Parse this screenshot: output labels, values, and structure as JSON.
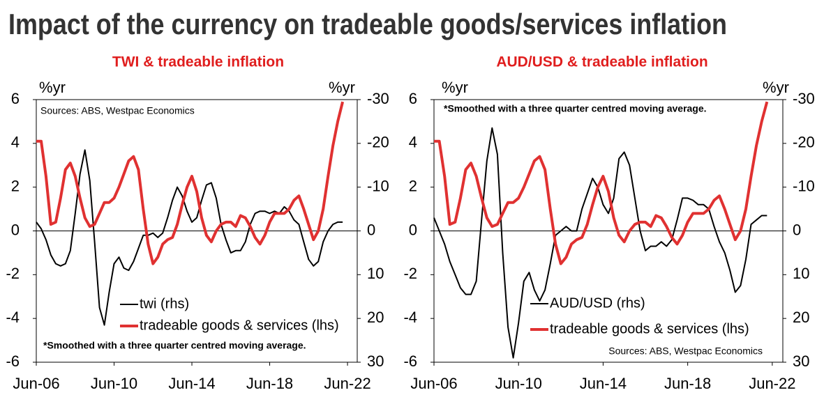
{
  "title": "Impact of the currency on tradeable goods/services inflation",
  "chart_data": [
    {
      "type": "line",
      "title": "TWI & tradeable inflation",
      "y_label": "%yr",
      "y2_label": "%yr",
      "sources": "Sources: ABS, Westpac Economics",
      "note": "*Smoothed with a three quarter centred moving average.",
      "legend": "lower center",
      "x": [
        "2006-06",
        "2006-09",
        "2006-12",
        "2007-03",
        "2007-06",
        "2007-09",
        "2007-12",
        "2008-03",
        "2008-06",
        "2008-09",
        "2008-12",
        "2009-03",
        "2009-06",
        "2009-09",
        "2009-12",
        "2010-03",
        "2010-06",
        "2010-09",
        "2010-12",
        "2011-03",
        "2011-06",
        "2011-09",
        "2011-12",
        "2012-03",
        "2012-06",
        "2012-09",
        "2012-12",
        "2013-03",
        "2013-06",
        "2013-09",
        "2013-12",
        "2014-03",
        "2014-06",
        "2014-09",
        "2014-12",
        "2015-03",
        "2015-06",
        "2015-09",
        "2015-12",
        "2016-03",
        "2016-06",
        "2016-09",
        "2016-12",
        "2017-03",
        "2017-06",
        "2017-09",
        "2017-12",
        "2018-03",
        "2018-06",
        "2018-09",
        "2018-12",
        "2019-03",
        "2019-06",
        "2019-09",
        "2019-12",
        "2020-03",
        "2020-06",
        "2020-09",
        "2020-12",
        "2021-03",
        "2021-06",
        "2021-09",
        "2021-12",
        "2022-03"
      ],
      "xlim": [
        "2006-06",
        "2022-12"
      ],
      "xticks": [
        {
          "value": "2006-06",
          "label": "Jun-06"
        },
        {
          "value": "2010-06",
          "label": "Jun-10"
        },
        {
          "value": "2014-06",
          "label": "Jun-14"
        },
        {
          "value": "2018-06",
          "label": "Jun-18"
        },
        {
          "value": "2022-06",
          "label": "Jun-22"
        }
      ],
      "ylim": [
        -6,
        6
      ],
      "yticks": [
        -6,
        -4,
        -2,
        0,
        2,
        4,
        6
      ],
      "y2lim": [
        30,
        -30
      ],
      "y2ticks": [
        -30,
        -20,
        -10,
        0,
        10,
        20,
        30
      ],
      "series": [
        {
          "name": "twi (rhs)",
          "color": "#000000",
          "axis": "y2",
          "values": [
            -2,
            -0.5,
            2,
            5.5,
            7.5,
            8,
            7.5,
            4.5,
            -4,
            -13,
            -18.5,
            -11.5,
            2.5,
            17.5,
            21.5,
            14,
            7.5,
            6,
            8.5,
            9,
            7,
            4,
            1,
            1,
            0.5,
            1.5,
            0.5,
            -3,
            -7,
            -10,
            -8,
            -4.5,
            -2,
            -3,
            -7,
            -10.5,
            -11,
            -7.5,
            -1.5,
            2,
            5,
            4.5,
            4.5,
            2.5,
            -1.5,
            -4,
            -4.5,
            -4.5,
            -4,
            -4.5,
            -4,
            -5.5,
            -4.5,
            -2.5,
            -1.5,
            2.5,
            6.5,
            8,
            7,
            2.5,
            0,
            -1.5,
            -2,
            -2
          ]
        },
        {
          "name": "tradeable goods & services (lhs)",
          "color": "#e03131",
          "values": [
            4.1,
            4.1,
            2.5,
            0.3,
            0.4,
            1.5,
            2.8,
            3.1,
            2.5,
            1.5,
            0.6,
            0.2,
            0.3,
            0.8,
            1.3,
            1.3,
            1.5,
            2.0,
            2.6,
            3.2,
            3.4,
            2.8,
            1.0,
            -0.6,
            -1.5,
            -1.2,
            -0.6,
            -0.4,
            -0.3,
            0.3,
            1.2,
            2.0,
            2.5,
            1.8,
            0.6,
            -0.2,
            -0.5,
            0.0,
            0.3,
            0.4,
            0.4,
            0.2,
            0.7,
            0.6,
            0.2,
            -0.3,
            -0.6,
            -0.2,
            0.4,
            0.8,
            0.8,
            0.8,
            1.0,
            1.4,
            1.6,
            1.0,
            0.3,
            -0.4,
            0.0,
            1.0,
            2.5,
            3.9,
            5.0,
            5.9
          ]
        }
      ]
    },
    {
      "type": "line",
      "title": "AUD/USD & tradeable inflation",
      "y_label": "%yr",
      "y2_label": "%yr",
      "sources": "Sources: ABS, Westpac Economics",
      "note": "*Smoothed with a three quarter centred moving average.",
      "legend": "lower center",
      "x": [
        "2006-06",
        "2006-09",
        "2006-12",
        "2007-03",
        "2007-06",
        "2007-09",
        "2007-12",
        "2008-03",
        "2008-06",
        "2008-09",
        "2008-12",
        "2009-03",
        "2009-06",
        "2009-09",
        "2009-12",
        "2010-03",
        "2010-06",
        "2010-09",
        "2010-12",
        "2011-03",
        "2011-06",
        "2011-09",
        "2011-12",
        "2012-03",
        "2012-06",
        "2012-09",
        "2012-12",
        "2013-03",
        "2013-06",
        "2013-09",
        "2013-12",
        "2014-03",
        "2014-06",
        "2014-09",
        "2014-12",
        "2015-03",
        "2015-06",
        "2015-09",
        "2015-12",
        "2016-03",
        "2016-06",
        "2016-09",
        "2016-12",
        "2017-03",
        "2017-06",
        "2017-09",
        "2017-12",
        "2018-03",
        "2018-06",
        "2018-09",
        "2018-12",
        "2019-03",
        "2019-06",
        "2019-09",
        "2019-12",
        "2020-03",
        "2020-06",
        "2020-09",
        "2020-12",
        "2021-03",
        "2021-06",
        "2021-09",
        "2021-12",
        "2022-03"
      ],
      "xlim": [
        "2006-06",
        "2022-12"
      ],
      "xticks": [
        {
          "value": "2006-06",
          "label": "Jun-06"
        },
        {
          "value": "2010-06",
          "label": "Jun-10"
        },
        {
          "value": "2014-06",
          "label": "Jun-14"
        },
        {
          "value": "2018-06",
          "label": "Jun-18"
        },
        {
          "value": "2022-06",
          "label": "Jun-22"
        }
      ],
      "ylim": [
        -6,
        6
      ],
      "yticks": [
        -6,
        -4,
        -2,
        0,
        2,
        4,
        6
      ],
      "y2lim": [
        30,
        -30
      ],
      "y2ticks": [
        -30,
        -20,
        -10,
        0,
        10,
        20,
        30
      ],
      "series": [
        {
          "name": "AUD/USD (rhs)",
          "color": "#000000",
          "axis": "y2",
          "values": [
            -3,
            0,
            3,
            7,
            10,
            13,
            14.5,
            14.5,
            11.5,
            -2.5,
            -16,
            -23.5,
            -17.5,
            5,
            22,
            29,
            21,
            11.5,
            9.5,
            13.5,
            16,
            13.5,
            7.5,
            1,
            0,
            -1,
            0,
            0,
            -5,
            -8.5,
            -12,
            -10,
            -6,
            -4,
            -7.5,
            -16.5,
            -18,
            -15,
            -7.5,
            0,
            4.5,
            3.5,
            3.5,
            2.5,
            3.5,
            2,
            -2.5,
            -7.5,
            -7.5,
            -7,
            -6,
            -6,
            -5,
            -1,
            2.5,
            5,
            9,
            14,
            12.5,
            6.5,
            -1.5,
            -2.5,
            -3.5,
            -3.5
          ]
        },
        {
          "name": "tradeable goods & services (lhs)",
          "color": "#e03131",
          "values": [
            4.1,
            4.1,
            2.5,
            0.3,
            0.4,
            1.5,
            2.8,
            3.1,
            2.5,
            1.5,
            0.6,
            0.2,
            0.3,
            0.8,
            1.3,
            1.3,
            1.5,
            2.0,
            2.6,
            3.2,
            3.4,
            2.8,
            1.0,
            -0.6,
            -1.5,
            -1.2,
            -0.6,
            -0.4,
            -0.3,
            0.3,
            1.2,
            2.0,
            2.5,
            1.8,
            0.6,
            -0.2,
            -0.5,
            0.0,
            0.3,
            0.4,
            0.4,
            0.2,
            0.7,
            0.6,
            0.2,
            -0.3,
            -0.6,
            -0.2,
            0.4,
            0.8,
            0.8,
            0.8,
            1.0,
            1.4,
            1.6,
            1.0,
            0.3,
            -0.4,
            0.0,
            1.0,
            2.5,
            3.9,
            5.0,
            5.9
          ]
        }
      ]
    }
  ]
}
